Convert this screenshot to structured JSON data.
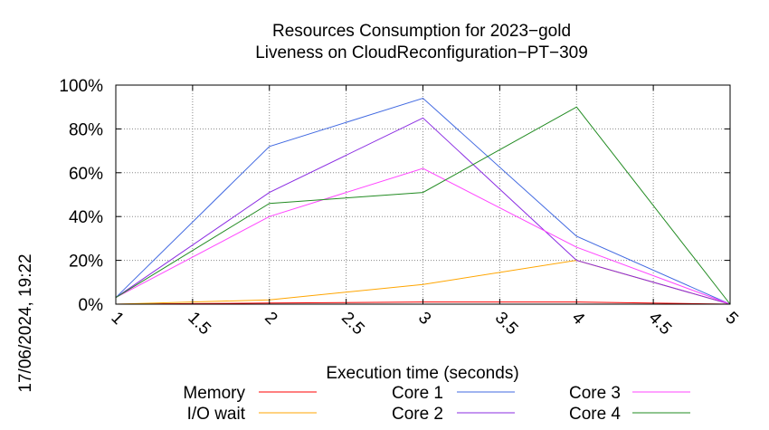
{
  "chart_data": {
    "type": "line",
    "title": "Resources Consumption for 2023−gold",
    "subtitle": "Liveness on CloudReconfiguration−PT−309",
    "xlabel": "Execution time (seconds)",
    "ylabel": "",
    "side_label": "17/06/2024, 19:22",
    "xlim": [
      1,
      5
    ],
    "ylim": [
      0,
      100
    ],
    "x_ticks": [
      1,
      1.5,
      2,
      2.5,
      3,
      3.5,
      4,
      4.5,
      5
    ],
    "x_tick_labels": [
      "1",
      "1.5",
      "2",
      "2.5",
      "3",
      "3.5",
      "4",
      "4.5",
      "5"
    ],
    "y_ticks": [
      0,
      20,
      40,
      60,
      80,
      100
    ],
    "y_tick_labels": [
      "0%",
      "20%",
      "40%",
      "60%",
      "80%",
      "100%"
    ],
    "grid": true,
    "legend_position": "bottom",
    "x": [
      1,
      2,
      3,
      4,
      5
    ],
    "series": [
      {
        "name": "Memory",
        "color": "#ff0000",
        "values": [
          0,
          0.5,
          1,
          1,
          0
        ]
      },
      {
        "name": "I/O wait",
        "color": "#ffa500",
        "values": [
          0,
          2,
          9,
          20,
          0
        ]
      },
      {
        "name": "Core 1",
        "color": "#4169e1",
        "values": [
          3,
          72,
          94,
          31,
          0
        ]
      },
      {
        "name": "Core 2",
        "color": "#8a2be2",
        "values": [
          3,
          51,
          85,
          20,
          0
        ]
      },
      {
        "name": "Core 3",
        "color": "#ff44ff",
        "values": [
          3,
          40,
          62,
          26,
          0
        ]
      },
      {
        "name": "Core 4",
        "color": "#228b22",
        "values": [
          3,
          46,
          51,
          90,
          0
        ]
      }
    ]
  }
}
